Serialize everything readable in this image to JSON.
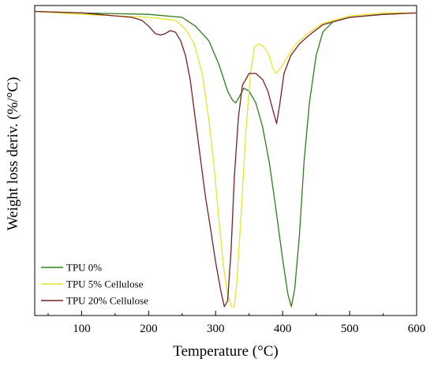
{
  "chart_data": {
    "type": "line",
    "title": "",
    "xlabel": "Temperature (°C)",
    "ylabel": "Weight loss deriv. (%/°C)",
    "xlim": [
      30,
      600
    ],
    "ylim": [
      -1.02,
      0.03
    ],
    "x_ticks": [
      100,
      200,
      300,
      400,
      500,
      600
    ],
    "x_tick_labels": [
      "100",
      "200",
      "300",
      "400",
      "500",
      "600"
    ],
    "y_ticks_shown": false,
    "grid": false,
    "legend_position": "bottom-left",
    "series": [
      {
        "name": "TPU 0%",
        "color": "#2e7d1e",
        "points": [
          [
            30,
            0.01
          ],
          [
            100,
            0.005
          ],
          [
            200,
            0.0
          ],
          [
            250,
            -0.01
          ],
          [
            270,
            -0.04
          ],
          [
            290,
            -0.09
          ],
          [
            305,
            -0.17
          ],
          [
            318,
            -0.26
          ],
          [
            325,
            -0.29
          ],
          [
            330,
            -0.3
          ],
          [
            335,
            -0.28
          ],
          [
            342,
            -0.25
          ],
          [
            350,
            -0.26
          ],
          [
            360,
            -0.3
          ],
          [
            370,
            -0.38
          ],
          [
            380,
            -0.5
          ],
          [
            390,
            -0.66
          ],
          [
            400,
            -0.83
          ],
          [
            408,
            -0.95
          ],
          [
            413,
            -0.99
          ],
          [
            418,
            -0.93
          ],
          [
            425,
            -0.75
          ],
          [
            432,
            -0.5
          ],
          [
            440,
            -0.3
          ],
          [
            450,
            -0.14
          ],
          [
            460,
            -0.06
          ],
          [
            475,
            -0.025
          ],
          [
            500,
            -0.01
          ],
          [
            550,
            0.0
          ],
          [
            600,
            0.005
          ]
        ]
      },
      {
        "name": "TPU 5% Cellulose",
        "color": "#e6e62e",
        "points": [
          [
            30,
            0.01
          ],
          [
            100,
            0.0
          ],
          [
            200,
            -0.01
          ],
          [
            240,
            -0.02
          ],
          [
            255,
            -0.05
          ],
          [
            268,
            -0.1
          ],
          [
            280,
            -0.2
          ],
          [
            290,
            -0.36
          ],
          [
            298,
            -0.52
          ],
          [
            305,
            -0.7
          ],
          [
            312,
            -0.86
          ],
          [
            318,
            -0.95
          ],
          [
            324,
            -0.99
          ],
          [
            328,
            -0.99
          ],
          [
            332,
            -0.9
          ],
          [
            338,
            -0.68
          ],
          [
            345,
            -0.4
          ],
          [
            352,
            -0.2
          ],
          [
            358,
            -0.11
          ],
          [
            365,
            -0.1
          ],
          [
            372,
            -0.11
          ],
          [
            380,
            -0.14
          ],
          [
            385,
            -0.18
          ],
          [
            390,
            -0.2
          ],
          [
            398,
            -0.18
          ],
          [
            408,
            -0.14
          ],
          [
            420,
            -0.1
          ],
          [
            440,
            -0.06
          ],
          [
            460,
            -0.03
          ],
          [
            500,
            -0.005
          ],
          [
            550,
            0.005
          ],
          [
            600,
            0.005
          ]
        ]
      },
      {
        "name": "TPU 20% Cellulose",
        "color": "#7a2020",
        "points": [
          [
            30,
            0.01
          ],
          [
            100,
            0.005
          ],
          [
            150,
            -0.005
          ],
          [
            175,
            -0.01
          ],
          [
            190,
            -0.02
          ],
          [
            200,
            -0.04
          ],
          [
            210,
            -0.065
          ],
          [
            218,
            -0.07
          ],
          [
            225,
            -0.065
          ],
          [
            232,
            -0.055
          ],
          [
            240,
            -0.06
          ],
          [
            248,
            -0.09
          ],
          [
            255,
            -0.14
          ],
          [
            262,
            -0.22
          ],
          [
            270,
            -0.36
          ],
          [
            278,
            -0.5
          ],
          [
            285,
            -0.62
          ],
          [
            292,
            -0.72
          ],
          [
            300,
            -0.84
          ],
          [
            308,
            -0.94
          ],
          [
            313,
            -0.99
          ],
          [
            318,
            -0.97
          ],
          [
            323,
            -0.8
          ],
          [
            328,
            -0.55
          ],
          [
            334,
            -0.35
          ],
          [
            340,
            -0.24
          ],
          [
            350,
            -0.2
          ],
          [
            360,
            -0.2
          ],
          [
            370,
            -0.22
          ],
          [
            378,
            -0.26
          ],
          [
            385,
            -0.32
          ],
          [
            391,
            -0.37
          ],
          [
            396,
            -0.3
          ],
          [
            402,
            -0.2
          ],
          [
            412,
            -0.14
          ],
          [
            425,
            -0.1
          ],
          [
            440,
            -0.07
          ],
          [
            460,
            -0.035
          ],
          [
            500,
            -0.01
          ],
          [
            550,
            0.0
          ],
          [
            600,
            0.005
          ]
        ]
      }
    ]
  }
}
